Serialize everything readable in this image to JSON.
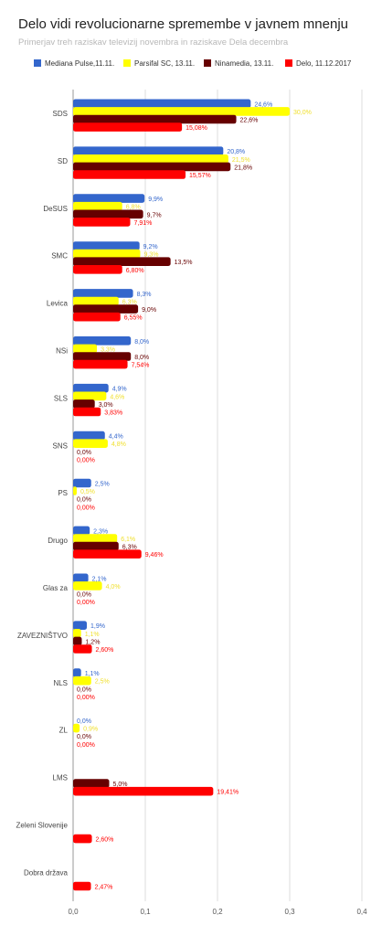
{
  "chart_data": {
    "type": "bar",
    "orientation": "horizontal",
    "title": "Delo vidi revolucionarne spremembe v javnem mnenju",
    "subtitle": "Primerjav treh raziskav televizij novembra in raziskave Dela decembra",
    "categories": [
      "SDS",
      "SD",
      "DeSUS",
      "SMC",
      "Levica",
      "NSi",
      "SLS",
      "SNS",
      "PS",
      "Drugo",
      "Glas za",
      "ZAVEZNIŠTVO",
      "NLS",
      "ZL",
      "LMS",
      "Zeleni Slovenije",
      "Dobra država"
    ],
    "series": [
      {
        "name": "Mediana Pulse,11.11.",
        "color": "#3366cc",
        "label_color": "#3366cc",
        "values": [
          0.246,
          0.208,
          0.099,
          0.092,
          0.083,
          0.08,
          0.049,
          0.044,
          0.025,
          0.023,
          0.021,
          0.019,
          0.011,
          0.0,
          null,
          null,
          null
        ],
        "labels": [
          "24,6%",
          "20,8%",
          "9,9%",
          "9,2%",
          "8,3%",
          "8,0%",
          "4,9%",
          "4,4%",
          "2,5%",
          "2,3%",
          "2,1%",
          "1,9%",
          "1,1%",
          "0,0%",
          "",
          "",
          ""
        ]
      },
      {
        "name": "Parsifal SC, 13.11.",
        "color": "#ffff00",
        "label_color": "#f0e030",
        "values": [
          0.3,
          0.215,
          0.068,
          0.093,
          0.063,
          0.033,
          0.046,
          0.048,
          0.005,
          0.061,
          0.04,
          0.011,
          0.025,
          0.009,
          null,
          null,
          null
        ],
        "labels": [
          "30,0%",
          "21,5%",
          "6,8%",
          "9,3%",
          "6,3%",
          "3,3%",
          "4,6%",
          "4,8%",
          "0,5%",
          "6,1%",
          "4,0%",
          "1,1%",
          "2,5%",
          "0,9%",
          "",
          "",
          ""
        ]
      },
      {
        "name": "Ninamedia, 13.11.",
        "color": "#660000",
        "label_color": "#660000",
        "values": [
          0.226,
          0.218,
          0.097,
          0.135,
          0.09,
          0.08,
          0.03,
          0.0,
          0.0,
          0.063,
          0.0,
          0.012,
          0.0,
          0.0,
          0.05,
          null,
          null
        ],
        "labels": [
          "22,6%",
          "21,8%",
          "9,7%",
          "13,5%",
          "9,0%",
          "8,0%",
          "3,0%",
          "0,0%",
          "0,0%",
          "6,3%",
          "0,0%",
          "1,2%",
          "0,0%",
          "0,0%",
          "5,0%",
          "",
          ""
        ]
      },
      {
        "name": "Delo, 11.12.2017",
        "color": "#ff0000",
        "label_color": "#ff0000",
        "values": [
          0.1508,
          0.1557,
          0.0791,
          0.068,
          0.0655,
          0.0754,
          0.0383,
          0.0,
          0.0,
          0.0946,
          0.0,
          0.026,
          0.0,
          0.0,
          0.1941,
          0.026,
          0.0247
        ],
        "labels": [
          "15,08%",
          "15,57%",
          "7,91%",
          "6,80%",
          "6,55%",
          "7,54%",
          "3,83%",
          "0,00%",
          "0,00%",
          "9,46%",
          "0,00%",
          "2,60%",
          "0,00%",
          "0,00%",
          "19,41%",
          "2,60%",
          "2,47%"
        ]
      }
    ],
    "xlim": [
      0,
      0.4
    ],
    "x_ticks": [
      0,
      0.1,
      0.2,
      0.3,
      0.4
    ],
    "x_tick_labels": [
      "0,0",
      "0,1",
      "0,2",
      "0,3",
      "0,4"
    ],
    "grid": true,
    "legend_position": "top"
  }
}
